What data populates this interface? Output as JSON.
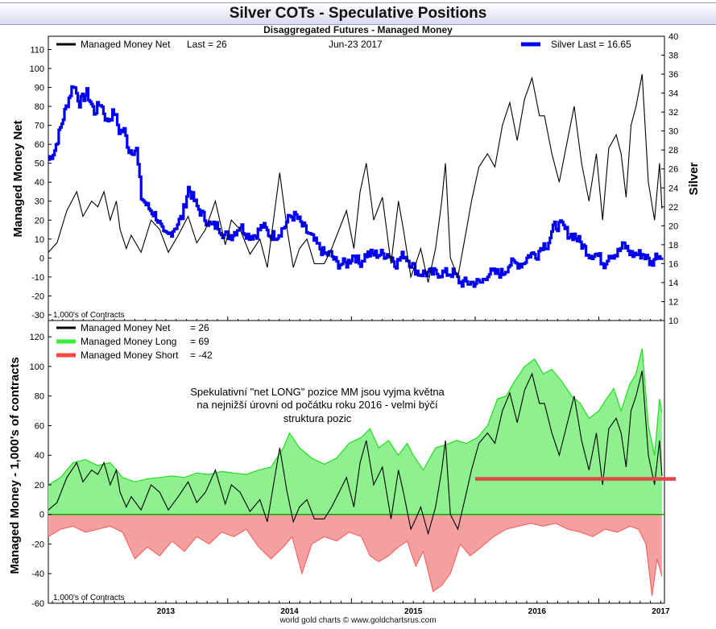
{
  "title": "Silver COTs - Speculative Positions",
  "subtitle": "Disaggregated Futures - Managed Money",
  "footer": "world gold charts © www.goldchartsrus.com",
  "colors": {
    "net": "#000000",
    "silver": "#0000ee",
    "long_line": "#22dd22",
    "long_fill": "#8ef08e",
    "short_line": "#ff5555",
    "short_fill": "#f5a0a0",
    "annotation_bar": "#e04848"
  },
  "chart_data": [
    {
      "type": "line",
      "legend_left": {
        "label": "Managed Money Net",
        "extra": "Last = 26"
      },
      "date_label": "Jun-23  2017",
      "legend_right": {
        "label": "Silver Last = 16.65"
      },
      "ylabel_left": "Managed Money Net",
      "ylabel_right": "Silver",
      "unit_note": "1,000's of Contracts",
      "xlim": [
        2012.55,
        2017.53
      ],
      "ylim_left": [
        -33,
        117
      ],
      "ylim_right": [
        10,
        40
      ],
      "yticks_left": [
        110,
        100,
        90,
        80,
        70,
        60,
        50,
        40,
        30,
        20,
        10,
        0,
        -10,
        -20,
        -30
      ],
      "yticks_right": [
        40,
        38,
        36,
        34,
        32,
        30,
        28,
        26,
        24,
        22,
        20,
        18,
        16,
        14,
        12,
        10
      ],
      "series": [
        {
          "name": "Managed Money Net",
          "axis": "left",
          "x": [
            2012.55,
            2012.62,
            2012.7,
            2012.78,
            2012.83,
            2012.9,
            2012.95,
            2013.0,
            2013.05,
            2013.1,
            2013.13,
            2013.18,
            2013.22,
            2013.3,
            2013.38,
            2013.45,
            2013.52,
            2013.6,
            2013.68,
            2013.75,
            2013.82,
            2013.9,
            2013.98,
            2014.03,
            2014.1,
            2014.18,
            2014.26,
            2014.32,
            2014.38,
            2014.42,
            2014.48,
            2014.53,
            2014.58,
            2014.64,
            2014.7,
            2014.78,
            2014.84,
            2014.9,
            2014.96,
            2015.02,
            2015.07,
            2015.12,
            2015.18,
            2015.25,
            2015.32,
            2015.38,
            2015.42,
            2015.48,
            2015.52,
            2015.56,
            2015.62,
            2015.68,
            2015.73,
            2015.76,
            2015.8,
            2015.86,
            2015.93,
            2015.97,
            2016.03,
            2016.1,
            2016.16,
            2016.22,
            2016.28,
            2016.34,
            2016.4,
            2016.46,
            2016.52,
            2016.56,
            2016.62,
            2016.68,
            2016.74,
            2016.8,
            2016.86,
            2016.92,
            2016.98,
            2017.03,
            2017.08,
            2017.14,
            2017.18,
            2017.22,
            2017.26,
            2017.3,
            2017.35,
            2017.4,
            2017.45,
            2017.49,
            2017.51
          ],
          "y": [
            3,
            8,
            25,
            35,
            22,
            30,
            27,
            35,
            20,
            30,
            15,
            5,
            12,
            3,
            20,
            15,
            3,
            12,
            22,
            8,
            15,
            30,
            7,
            20,
            15,
            2,
            10,
            -5,
            25,
            45,
            15,
            -5,
            5,
            10,
            -3,
            -3,
            5,
            15,
            25,
            5,
            35,
            50,
            20,
            32,
            -3,
            30,
            15,
            -10,
            -3,
            5,
            -13,
            5,
            30,
            50,
            0,
            -10,
            15,
            30,
            48,
            55,
            48,
            70,
            82,
            62,
            84,
            95,
            75,
            75,
            55,
            40,
            60,
            80,
            50,
            30,
            55,
            20,
            58,
            65,
            55,
            32,
            70,
            80,
            97,
            40,
            20,
            50,
            26
          ]
        },
        {
          "name": "Silver",
          "axis": "right",
          "x": [
            2012.55,
            2012.6,
            2012.68,
            2012.75,
            2012.8,
            2012.86,
            2012.92,
            2012.97,
            2013.02,
            2013.08,
            2013.12,
            2013.16,
            2013.2,
            2013.26,
            2013.3,
            2013.35,
            2013.42,
            2013.48,
            2013.52,
            2013.58,
            2013.63,
            2013.68,
            2013.75,
            2013.8,
            2013.86,
            2013.92,
            2013.97,
            2014.03,
            2014.1,
            2014.16,
            2014.22,
            2014.28,
            2014.34,
            2014.4,
            2014.46,
            2014.5,
            2014.55,
            2014.6,
            2014.66,
            2014.72,
            2014.78,
            2014.83,
            2014.88,
            2014.92,
            2014.96,
            2015.02,
            2015.06,
            2015.12,
            2015.18,
            2015.24,
            2015.3,
            2015.36,
            2015.42,
            2015.48,
            2015.54,
            2015.58,
            2015.64,
            2015.7,
            2015.76,
            2015.82,
            2015.88,
            2015.94,
            2016.0,
            2016.05,
            2016.1,
            2016.15,
            2016.22,
            2016.28,
            2016.32,
            2016.38,
            2016.44,
            2016.5,
            2016.54,
            2016.58,
            2016.64,
            2016.7,
            2016.76,
            2016.8,
            2016.86,
            2016.92,
            2016.98,
            2017.04,
            2017.08,
            2017.14,
            2017.2,
            2017.26,
            2017.3,
            2017.36,
            2017.42,
            2017.47,
            2017.51
          ],
          "y": [
            27,
            28,
            32,
            35,
            33,
            34,
            32,
            33,
            31,
            32,
            30,
            30,
            28,
            28,
            23,
            22,
            21,
            19,
            19,
            20,
            21,
            24,
            22,
            21,
            20,
            20,
            19,
            19,
            20,
            19,
            19,
            20,
            19,
            19,
            20,
            21,
            21,
            20,
            19,
            18,
            17,
            17,
            16,
            16,
            16,
            17,
            16,
            17,
            17,
            17,
            17,
            16,
            17,
            16,
            15,
            15,
            15,
            15,
            15,
            15,
            14,
            14,
            14,
            14,
            15,
            15,
            15,
            16,
            16,
            16,
            17,
            17,
            18,
            18,
            20,
            20,
            19,
            19,
            18,
            17,
            17,
            16,
            17,
            17,
            18,
            17,
            17,
            17,
            16,
            17,
            16.65
          ]
        }
      ]
    },
    {
      "type": "area",
      "legend": [
        {
          "label": "Managed Money Net",
          "value": "= 26"
        },
        {
          "label": "Managed Money Long",
          "value": "= 69"
        },
        {
          "label": "Managed Money Short",
          "value": "= -42"
        }
      ],
      "annotation": [
        "Spekulativní \"net LONG\" pozice MM jsou vyjma května",
        "na nejnižší úrovni od počátku roku 2016 - velmi býčí",
        "struktura pozic"
      ],
      "ylabel": "Managed Money - 1,000's of contracts",
      "unit_note": "1,000's of Contracts",
      "xlim": [
        2012.55,
        2017.53
      ],
      "ylim": [
        -60,
        131
      ],
      "yticks": [
        120,
        100,
        80,
        60,
        40,
        20,
        0,
        -20,
        -40,
        -60
      ],
      "xticks": [
        "2013",
        "2014",
        "2015",
        "2016",
        "2017"
      ],
      "xtick_values": [
        2013,
        2014,
        2015,
        2016,
        2017
      ],
      "reference_line": {
        "x_start": 2016.0,
        "x_end": 2017.53,
        "y": 24
      },
      "series": [
        {
          "name": "Managed Money Long",
          "x": [
            2012.55,
            2012.65,
            2012.75,
            2012.85,
            2012.95,
            2013.05,
            2013.15,
            2013.25,
            2013.35,
            2013.45,
            2013.55,
            2013.65,
            2013.75,
            2013.85,
            2013.95,
            2014.05,
            2014.15,
            2014.25,
            2014.35,
            2014.45,
            2014.5,
            2014.58,
            2014.68,
            2014.78,
            2014.88,
            2014.98,
            2015.08,
            2015.15,
            2015.22,
            2015.3,
            2015.38,
            2015.45,
            2015.5,
            2015.58,
            2015.68,
            2015.76,
            2015.85,
            2015.93,
            2016.02,
            2016.1,
            2016.18,
            2016.25,
            2016.32,
            2016.4,
            2016.48,
            2016.55,
            2016.62,
            2016.7,
            2016.78,
            2016.85,
            2016.92,
            2017.0,
            2017.06,
            2017.12,
            2017.18,
            2017.25,
            2017.3,
            2017.35,
            2017.4,
            2017.45,
            2017.49,
            2017.51
          ],
          "y": [
            20,
            25,
            35,
            37,
            33,
            35,
            25,
            22,
            24,
            25,
            26,
            25,
            28,
            27,
            29,
            28,
            27,
            30,
            32,
            45,
            55,
            45,
            38,
            34,
            38,
            48,
            52,
            58,
            45,
            50,
            40,
            48,
            40,
            30,
            45,
            47,
            50,
            48,
            52,
            60,
            78,
            80,
            90,
            100,
            105,
            95,
            98,
            90,
            80,
            75,
            65,
            70,
            78,
            85,
            70,
            88,
            95,
            112,
            60,
            40,
            78,
            69
          ]
        },
        {
          "name": "Managed Money Short",
          "x": [
            2012.55,
            2012.65,
            2012.75,
            2012.85,
            2012.95,
            2013.05,
            2013.15,
            2013.25,
            2013.35,
            2013.45,
            2013.55,
            2013.65,
            2013.75,
            2013.85,
            2013.95,
            2014.05,
            2014.15,
            2014.25,
            2014.35,
            2014.45,
            2014.52,
            2014.6,
            2014.68,
            2014.78,
            2014.88,
            2014.98,
            2015.08,
            2015.15,
            2015.22,
            2015.3,
            2015.38,
            2015.45,
            2015.52,
            2015.58,
            2015.66,
            2015.73,
            2015.8,
            2015.88,
            2015.96,
            2016.05,
            2016.15,
            2016.25,
            2016.35,
            2016.45,
            2016.55,
            2016.65,
            2016.75,
            2016.85,
            2016.95,
            2017.05,
            2017.15,
            2017.25,
            2017.32,
            2017.38,
            2017.43,
            2017.47,
            2017.51
          ],
          "y": [
            -15,
            -10,
            -8,
            -12,
            -10,
            -8,
            -12,
            -30,
            -22,
            -28,
            -18,
            -25,
            -15,
            -20,
            -12,
            -15,
            -10,
            -22,
            -30,
            -22,
            -15,
            -40,
            -20,
            -15,
            -18,
            -12,
            -15,
            -28,
            -32,
            -28,
            -22,
            -18,
            -35,
            -25,
            -52,
            -48,
            -40,
            -20,
            -28,
            -22,
            -15,
            -10,
            -8,
            -6,
            -8,
            -6,
            -10,
            -12,
            -15,
            -10,
            -12,
            -8,
            -10,
            -20,
            -55,
            -30,
            -42
          ]
        },
        {
          "name": "Managed Money Net",
          "x": [
            2012.55,
            2012.62,
            2012.7,
            2012.78,
            2012.83,
            2012.9,
            2012.95,
            2013.0,
            2013.05,
            2013.1,
            2013.13,
            2013.18,
            2013.22,
            2013.3,
            2013.38,
            2013.45,
            2013.52,
            2013.6,
            2013.68,
            2013.75,
            2013.82,
            2013.9,
            2013.98,
            2014.03,
            2014.1,
            2014.18,
            2014.26,
            2014.32,
            2014.38,
            2014.42,
            2014.48,
            2014.53,
            2014.58,
            2014.64,
            2014.7,
            2014.78,
            2014.84,
            2014.9,
            2014.96,
            2015.02,
            2015.07,
            2015.12,
            2015.18,
            2015.25,
            2015.32,
            2015.38,
            2015.42,
            2015.48,
            2015.52,
            2015.56,
            2015.62,
            2015.68,
            2015.73,
            2015.76,
            2015.8,
            2015.86,
            2015.93,
            2015.97,
            2016.03,
            2016.1,
            2016.16,
            2016.22,
            2016.28,
            2016.34,
            2016.4,
            2016.46,
            2016.52,
            2016.56,
            2016.62,
            2016.68,
            2016.74,
            2016.8,
            2016.86,
            2016.92,
            2016.98,
            2017.03,
            2017.08,
            2017.14,
            2017.18,
            2017.22,
            2017.26,
            2017.3,
            2017.35,
            2017.4,
            2017.45,
            2017.49,
            2017.51
          ],
          "y": [
            3,
            8,
            25,
            35,
            22,
            30,
            27,
            35,
            20,
            30,
            15,
            5,
            12,
            3,
            20,
            15,
            3,
            12,
            22,
            8,
            15,
            30,
            7,
            20,
            15,
            2,
            10,
            -5,
            25,
            45,
            15,
            -5,
            5,
            10,
            -3,
            -3,
            5,
            15,
            25,
            5,
            35,
            50,
            20,
            32,
            -3,
            30,
            15,
            -10,
            -3,
            5,
            -13,
            5,
            30,
            50,
            0,
            -10,
            15,
            30,
            48,
            55,
            48,
            70,
            82,
            62,
            84,
            95,
            75,
            75,
            55,
            40,
            60,
            80,
            50,
            30,
            55,
            20,
            58,
            65,
            55,
            32,
            70,
            80,
            97,
            40,
            20,
            50,
            26
          ]
        }
      ]
    }
  ]
}
